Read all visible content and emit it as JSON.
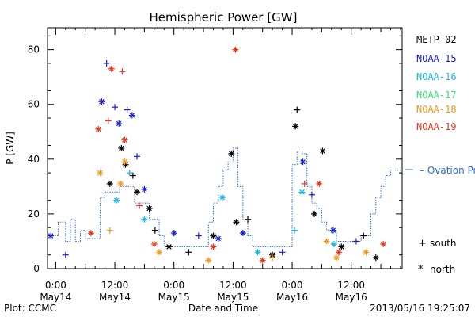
{
  "chart_data": {
    "type": "scatter",
    "title": "Hemispheric Power [GW]",
    "ylabel": "P [GW]",
    "xlabel": "Date and Time",
    "ylim": [
      0,
      88
    ],
    "xlim": [
      "2013-05-13T22:20",
      "2013-05-16T22:20"
    ],
    "yticks": [
      0,
      20,
      40,
      60,
      80
    ],
    "xticks": [
      {
        "t": "2013-05-14T00:00",
        "time": "0:00",
        "date": "May14"
      },
      {
        "t": "2013-05-14T12:00",
        "time": "12:00",
        "date": "May14"
      },
      {
        "t": "2013-05-15T00:00",
        "time": "0:00",
        "date": "May15"
      },
      {
        "t": "2013-05-15T12:00",
        "time": "12:00",
        "date": "May15"
      },
      {
        "t": "2013-05-16T00:00",
        "time": "0:00",
        "date": "May16"
      },
      {
        "t": "2013-05-16T12:00",
        "time": "12:00",
        "date": "May16"
      }
    ],
    "footer_left": "Plot: CCMC",
    "footer_right": "2013/05/16 19:25:07",
    "grid": false,
    "legend_position": "right",
    "marker_legend": [
      {
        "symbol": "+",
        "label": "south"
      },
      {
        "symbol": "*",
        "label": "north"
      }
    ],
    "series": [
      {
        "name": "METP-02",
        "color": "#000000",
        "points": [
          {
            "t": "2013-05-14T11:00",
            "y": 31,
            "m": "*"
          },
          {
            "t": "2013-05-14T13:20",
            "y": 44,
            "m": "*"
          },
          {
            "t": "2013-05-14T14:10",
            "y": 38,
            "m": "*"
          },
          {
            "t": "2013-05-14T15:40",
            "y": 34,
            "m": "+"
          },
          {
            "t": "2013-05-14T16:30",
            "y": 28,
            "m": "*"
          },
          {
            "t": "2013-05-14T19:00",
            "y": 22,
            "m": "*"
          },
          {
            "t": "2013-05-14T20:10",
            "y": 14,
            "m": "+"
          },
          {
            "t": "2013-05-14T23:00",
            "y": 8,
            "m": "*"
          },
          {
            "t": "2013-05-15T03:00",
            "y": 6,
            "m": "+"
          },
          {
            "t": "2013-05-15T08:00",
            "y": 12,
            "m": "*"
          },
          {
            "t": "2013-05-15T11:40",
            "y": 42,
            "m": "*"
          },
          {
            "t": "2013-05-15T12:40",
            "y": 17,
            "m": "*"
          },
          {
            "t": "2013-05-15T15:00",
            "y": 18,
            "m": "+"
          },
          {
            "t": "2013-05-15T20:00",
            "y": 5,
            "m": "*"
          },
          {
            "t": "2013-05-16T00:40",
            "y": 52,
            "m": "*"
          },
          {
            "t": "2013-05-16T01:00",
            "y": 58,
            "m": "+"
          },
          {
            "t": "2013-05-16T04:30",
            "y": 20,
            "m": "*"
          },
          {
            "t": "2013-05-16T06:10",
            "y": 43,
            "m": "*"
          },
          {
            "t": "2013-05-16T10:00",
            "y": 8,
            "m": "*"
          },
          {
            "t": "2013-05-16T14:30",
            "y": 12,
            "m": "+"
          },
          {
            "t": "2013-05-16T17:00",
            "y": 4,
            "m": "*"
          }
        ]
      },
      {
        "name": "NOAA-15",
        "color": "#1a22cc",
        "points": [
          {
            "t": "2013-05-13T23:00",
            "y": 12,
            "m": "*"
          },
          {
            "t": "2013-05-14T02:00",
            "y": 5,
            "m": "+"
          },
          {
            "t": "2013-05-14T09:20",
            "y": 61,
            "m": "*"
          },
          {
            "t": "2013-05-14T10:20",
            "y": 75,
            "m": "+"
          },
          {
            "t": "2013-05-14T12:00",
            "y": 59,
            "m": "+"
          },
          {
            "t": "2013-05-14T12:50",
            "y": 53,
            "m": "*"
          },
          {
            "t": "2013-05-14T14:30",
            "y": 58,
            "m": "+"
          },
          {
            "t": "2013-05-14T15:30",
            "y": 56,
            "m": "*"
          },
          {
            "t": "2013-05-14T16:30",
            "y": 41,
            "m": "+"
          },
          {
            "t": "2013-05-14T18:00",
            "y": 29,
            "m": "*"
          },
          {
            "t": "2013-05-15T00:00",
            "y": 13,
            "m": "*"
          },
          {
            "t": "2013-05-15T05:00",
            "y": 12,
            "m": "+"
          },
          {
            "t": "2013-05-15T09:00",
            "y": 11,
            "m": "*"
          },
          {
            "t": "2013-05-15T14:00",
            "y": 13,
            "m": "*"
          },
          {
            "t": "2013-05-15T22:00",
            "y": 6,
            "m": "+"
          },
          {
            "t": "2013-05-16T02:10",
            "y": 39,
            "m": "*"
          },
          {
            "t": "2013-05-16T04:00",
            "y": 27,
            "m": "+"
          },
          {
            "t": "2013-05-16T08:20",
            "y": 14,
            "m": "*"
          },
          {
            "t": "2013-05-16T13:00",
            "y": 10,
            "m": "+"
          }
        ]
      },
      {
        "name": "NOAA-16",
        "color": "#1ab8e0",
        "points": [
          {
            "t": "2013-05-14T12:20",
            "y": 25,
            "m": "*"
          },
          {
            "t": "2013-05-14T15:00",
            "y": 35,
            "m": "+"
          },
          {
            "t": "2013-05-14T18:00",
            "y": 18,
            "m": "*"
          },
          {
            "t": "2013-05-15T09:50",
            "y": 26,
            "m": "*"
          },
          {
            "t": "2013-05-15T17:00",
            "y": 6,
            "m": "*"
          },
          {
            "t": "2013-05-16T00:30",
            "y": 14,
            "m": "+"
          },
          {
            "t": "2013-05-16T02:00",
            "y": 28,
            "m": "*"
          },
          {
            "t": "2013-05-16T08:30",
            "y": 9,
            "m": "*"
          }
        ]
      },
      {
        "name": "NOAA-17",
        "color": "#3ddc7a",
        "points": []
      },
      {
        "name": "NOAA-18",
        "color": "#f09a22",
        "points": [
          {
            "t": "2013-05-14T09:00",
            "y": 35,
            "m": "*"
          },
          {
            "t": "2013-05-14T11:00",
            "y": 14,
            "m": "+"
          },
          {
            "t": "2013-05-14T13:10",
            "y": 31,
            "m": "*"
          },
          {
            "t": "2013-05-14T14:00",
            "y": 39,
            "m": "*"
          },
          {
            "t": "2013-05-14T21:00",
            "y": 6,
            "m": "*"
          },
          {
            "t": "2013-05-15T07:00",
            "y": 3,
            "m": "*"
          },
          {
            "t": "2013-05-15T20:00",
            "y": 4,
            "m": "+"
          },
          {
            "t": "2013-05-16T07:00",
            "y": 10,
            "m": "*"
          },
          {
            "t": "2013-05-16T09:00",
            "y": 4,
            "m": "*"
          },
          {
            "t": "2013-05-16T15:00",
            "y": 6,
            "m": "*"
          }
        ]
      },
      {
        "name": "NOAA-19",
        "color": "#e03a22",
        "points": [
          {
            "t": "2013-05-14T07:10",
            "y": 13,
            "m": "*"
          },
          {
            "t": "2013-05-14T08:40",
            "y": 51,
            "m": "*"
          },
          {
            "t": "2013-05-14T10:40",
            "y": 54,
            "m": "+"
          },
          {
            "t": "2013-05-14T11:20",
            "y": 73,
            "m": "*"
          },
          {
            "t": "2013-05-14T13:30",
            "y": 72,
            "m": "+"
          },
          {
            "t": "2013-05-14T14:00",
            "y": 47,
            "m": "*"
          },
          {
            "t": "2013-05-14T17:00",
            "y": 23,
            "m": "+"
          },
          {
            "t": "2013-05-14T20:00",
            "y": 9,
            "m": "*"
          },
          {
            "t": "2013-05-15T08:00",
            "y": 8,
            "m": "*"
          },
          {
            "t": "2013-05-15T12:30",
            "y": 80,
            "m": "*"
          },
          {
            "t": "2013-05-15T18:00",
            "y": 3,
            "m": "*"
          },
          {
            "t": "2013-05-16T02:30",
            "y": 31,
            "m": "+"
          },
          {
            "t": "2013-05-16T05:30",
            "y": 31,
            "m": "*"
          },
          {
            "t": "2013-05-16T09:30",
            "y": 6,
            "m": "*"
          },
          {
            "t": "2013-05-16T18:30",
            "y": 9,
            "m": "*"
          }
        ]
      },
      {
        "name": "Ovation Prime HPI",
        "color": "#2a6ed6",
        "style": "step",
        "points": [
          {
            "t": "2013-05-13T22:20",
            "y": 12
          },
          {
            "t": "2013-05-14T00:00",
            "y": 12
          },
          {
            "t": "2013-05-14T00:30",
            "y": 17
          },
          {
            "t": "2013-05-14T02:00",
            "y": 10
          },
          {
            "t": "2013-05-14T03:00",
            "y": 18
          },
          {
            "t": "2013-05-14T04:00",
            "y": 10
          },
          {
            "t": "2013-05-14T05:00",
            "y": 14
          },
          {
            "t": "2013-05-14T06:00",
            "y": 11
          },
          {
            "t": "2013-05-14T08:00",
            "y": 11
          },
          {
            "t": "2013-05-14T09:00",
            "y": 26
          },
          {
            "t": "2013-05-14T10:00",
            "y": 28
          },
          {
            "t": "2013-05-14T12:30",
            "y": 28
          },
          {
            "t": "2013-05-14T13:00",
            "y": 30
          },
          {
            "t": "2013-05-14T15:00",
            "y": 30
          },
          {
            "t": "2013-05-14T16:00",
            "y": 24
          },
          {
            "t": "2013-05-14T18:00",
            "y": 24
          },
          {
            "t": "2013-05-14T19:00",
            "y": 18
          },
          {
            "t": "2013-05-14T21:00",
            "y": 12
          },
          {
            "t": "2013-05-14T22:00",
            "y": 8
          },
          {
            "t": "2013-05-15T03:00",
            "y": 8
          },
          {
            "t": "2013-05-15T06:00",
            "y": 8
          },
          {
            "t": "2013-05-15T07:00",
            "y": 17
          },
          {
            "t": "2013-05-15T08:00",
            "y": 24
          },
          {
            "t": "2013-05-15T09:00",
            "y": 30
          },
          {
            "t": "2013-05-15T10:00",
            "y": 36
          },
          {
            "t": "2013-05-15T11:00",
            "y": 39
          },
          {
            "t": "2013-05-15T12:00",
            "y": 44
          },
          {
            "t": "2013-05-15T13:00",
            "y": 30
          },
          {
            "t": "2013-05-15T14:00",
            "y": 18
          },
          {
            "t": "2013-05-15T15:00",
            "y": 12
          },
          {
            "t": "2013-05-15T16:00",
            "y": 8
          },
          {
            "t": "2013-05-15T23:00",
            "y": 8
          },
          {
            "t": "2013-05-16T00:00",
            "y": 38
          },
          {
            "t": "2013-05-16T01:00",
            "y": 43
          },
          {
            "t": "2013-05-16T02:00",
            "y": 42
          },
          {
            "t": "2013-05-16T03:00",
            "y": 30
          },
          {
            "t": "2013-05-16T04:00",
            "y": 24
          },
          {
            "t": "2013-05-16T05:00",
            "y": 22
          },
          {
            "t": "2013-05-16T06:00",
            "y": 17
          },
          {
            "t": "2013-05-16T07:00",
            "y": 14
          },
          {
            "t": "2013-05-16T09:00",
            "y": 10
          },
          {
            "t": "2013-05-16T12:00",
            "y": 10
          },
          {
            "t": "2013-05-16T14:00",
            "y": 12
          },
          {
            "t": "2013-05-16T16:00",
            "y": 20
          },
          {
            "t": "2013-05-16T17:00",
            "y": 26
          },
          {
            "t": "2013-05-16T18:00",
            "y": 30
          },
          {
            "t": "2013-05-16T19:00",
            "y": 34
          },
          {
            "t": "2013-05-16T20:00",
            "y": 36
          },
          {
            "t": "2013-05-16T22:20",
            "y": 37
          }
        ]
      }
    ]
  }
}
